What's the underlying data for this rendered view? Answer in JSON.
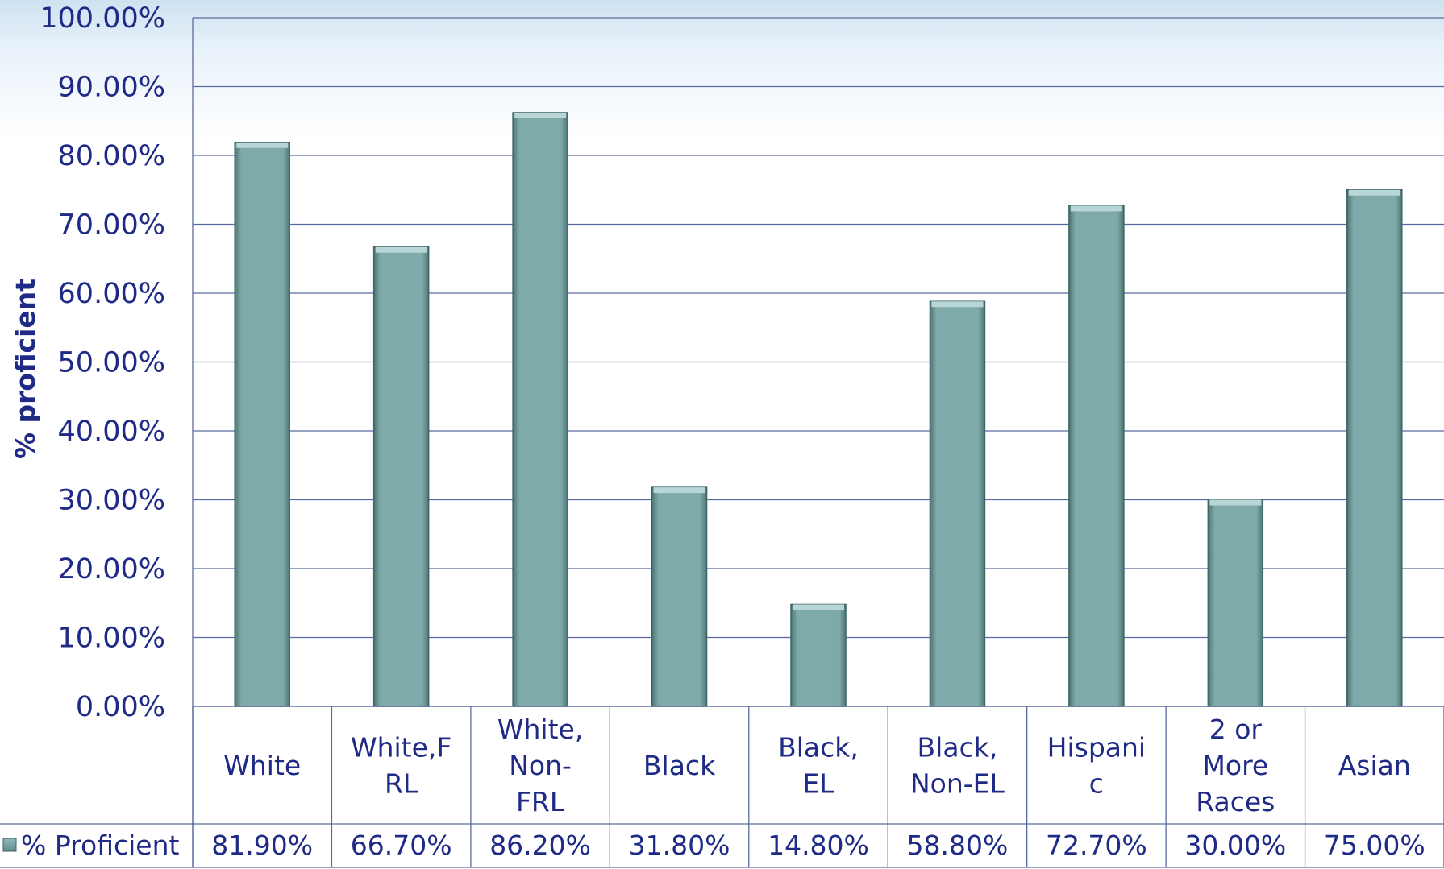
{
  "chart_data": {
    "type": "bar",
    "categories": [
      "White",
      "White,FRL",
      "White, Non-FRL",
      "Black",
      "Black, EL",
      "Black, Non-EL",
      "Hispanic",
      "2 or More Races",
      "Asian"
    ],
    "category_lines": [
      [
        "White"
      ],
      [
        "White,F",
        "RL"
      ],
      [
        "White,",
        "Non-",
        "FRL"
      ],
      [
        "Black"
      ],
      [
        "Black,",
        "EL"
      ],
      [
        "Black,",
        "Non-EL"
      ],
      [
        "Hispani",
        "c"
      ],
      [
        "2 or",
        "More",
        "Races"
      ],
      [
        "Asian"
      ]
    ],
    "series": [
      {
        "name": "% Proficient",
        "values": [
          81.9,
          66.7,
          86.2,
          31.8,
          14.8,
          58.8,
          72.7,
          30.0,
          75.0
        ],
        "labels": [
          "81.90%",
          "66.70%",
          "86.20%",
          "31.80%",
          "14.80%",
          "58.80%",
          "72.70%",
          "30.00%",
          "75.00%"
        ]
      }
    ],
    "ylabel": "% proficient",
    "ylim": [
      0,
      100
    ],
    "yticks": [
      "0.00%",
      "10.00%",
      "20.00%",
      "30.00%",
      "40.00%",
      "50.00%",
      "60.00%",
      "70.00%",
      "80.00%",
      "90.00%",
      "100.00%"
    ],
    "grid": true,
    "legend": "data-table",
    "colors": {
      "bar": "#7fa9aa",
      "text": "#1f2a86",
      "grid": "#5a6aa0"
    }
  }
}
